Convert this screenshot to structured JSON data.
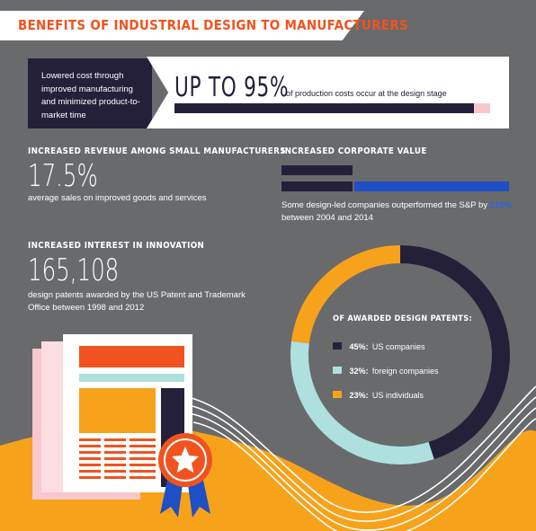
{
  "title": "BENEFITS OF INDUSTRIAL DESIGN TO MANUFACTURERS",
  "cost": {
    "description": "Lowered cost through improved manufacturing and minimized product-to-market time",
    "headline": "UP TO 95%",
    "subtext": "of production costs occur at the design stage",
    "bar_fraction": 0.95
  },
  "revenue": {
    "heading": "INCREASED REVENUE AMONG SMALL MANUFACTURERS",
    "value": "17.5%",
    "description": "average sales on improved goods and services"
  },
  "corporate": {
    "heading": "INCREASED CORPORATE VALUE",
    "description_prefix": "Some design-led companies outperformed the S&P by",
    "percent": "219%",
    "description_suffix": "between 2004 and 2014",
    "baseline_value": 100,
    "design_led_value": 319
  },
  "innovation": {
    "heading": "INCREASED INTEREST IN INNOVATION",
    "value": "165,108",
    "description": "design patents awarded by the US Patent and Trademark Office between 1998 and 2012"
  },
  "patents": {
    "title": "OF AWARDED DESIGN PATENTS:",
    "items": [
      {
        "percent": "45%:",
        "label": "US companies",
        "value": 45,
        "color": "#25203a"
      },
      {
        "percent": "32%:",
        "label": "foreign companies",
        "value": 32,
        "color": "#aee0de"
      },
      {
        "percent": "23%:",
        "label": "US individuals",
        "value": 23,
        "color": "#f7a21b"
      }
    ]
  },
  "colors": {
    "background": "#696a6c",
    "accent_orange": "#f0531f",
    "navy": "#25203a",
    "blue": "#1f4fc5",
    "gold": "#f7a21b",
    "mint": "#aee0de",
    "pink": "#f7c7ce"
  },
  "icons": [
    "document-illustration",
    "award-ribbon-icon",
    "star-icon"
  ]
}
